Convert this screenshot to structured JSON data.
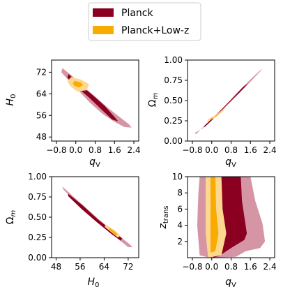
{
  "legend": {
    "items": [
      {
        "label": "Planck",
        "color": "#8b0020"
      },
      {
        "label": "Planck+Low-z",
        "color": "#f9ac00"
      }
    ],
    "placement": "top-center"
  },
  "chart_data": [
    {
      "type": "contour",
      "panel": "top-left",
      "xlabel": "q_V",
      "ylabel": "H_0",
      "xlim": [
        -1.0,
        2.6
      ],
      "ylim": [
        46.5,
        76.5
      ],
      "xticks": [
        "−0.8",
        "0.0",
        "0.8",
        "1.6",
        "2.4"
      ],
      "xtick_values": [
        -0.8,
        0.0,
        0.8,
        1.6,
        2.4
      ],
      "yticks": [
        "48",
        "56",
        "64",
        "72"
      ],
      "ytick_values": [
        48,
        56,
        64,
        72
      ],
      "series": [
        {
          "name": "Planck",
          "color": "#8b0020",
          "contour_95": [
            [
              -0.55,
              73.5
            ],
            [
              -0.2,
              71
            ],
            [
              0.3,
              66.8
            ],
            [
              0.8,
              63
            ],
            [
              1.3,
              59
            ],
            [
              1.8,
              55.5
            ],
            [
              2.2,
              52.7
            ],
            [
              2.3,
              51.5
            ],
            [
              2.0,
              51.7
            ],
            [
              1.6,
              53.6
            ],
            [
              1.1,
              56.6
            ],
            [
              0.55,
              61
            ],
            [
              0.05,
              65.8
            ],
            [
              -0.3,
              69
            ],
            [
              -0.6,
              72
            ]
          ],
          "contour_68": [
            [
              -0.3,
              71.3
            ],
            [
              0.2,
              67.2
            ],
            [
              0.7,
              63.5
            ],
            [
              1.2,
              59.5
            ],
            [
              1.62,
              55.2
            ],
            [
              1.75,
              53.8
            ],
            [
              1.5,
              54.5
            ],
            [
              1.05,
              58.3
            ],
            [
              0.55,
              62.6
            ],
            [
              0.05,
              66.5
            ],
            [
              -0.35,
              70
            ]
          ]
        },
        {
          "name": "Planck+Low-z",
          "color": "#f9ac00",
          "contour_95": [
            [
              -0.2,
              70.2
            ],
            [
              0.2,
              69.3
            ],
            [
              0.55,
              67.6
            ],
            [
              0.45,
              65.3
            ],
            [
              0.05,
              64.9
            ],
            [
              -0.2,
              66.6
            ],
            [
              -0.35,
              68.5
            ]
          ],
          "contour_68": [
            [
              -0.05,
              68.8
            ],
            [
              0.2,
              68.2
            ],
            [
              0.3,
              67.3
            ],
            [
              0.15,
              66.4
            ],
            [
              -0.05,
              66.9
            ],
            [
              -0.12,
              67.9
            ]
          ]
        }
      ]
    },
    {
      "type": "contour",
      "panel": "top-right",
      "xlabel": "q_V",
      "ylabel": "Ω_m",
      "xlim": [
        -1.0,
        2.6
      ],
      "ylim": [
        0.0,
        1.0
      ],
      "xticks": [
        "−0.8",
        "0.0",
        "0.8",
        "1.6",
        "2.4"
      ],
      "xtick_values": [
        -0.8,
        0.0,
        0.8,
        1.6,
        2.4
      ],
      "yticks": [
        "0.00",
        "0.25",
        "0.50",
        "0.75",
        "1.00"
      ],
      "ytick_values": [
        0.0,
        0.25,
        0.5,
        0.75,
        1.0
      ],
      "series": [
        {
          "name": "Planck",
          "color": "#8b0020",
          "contour_95": [
            [
              -0.65,
              0.085
            ],
            [
              -0.2,
              0.22
            ],
            [
              0.4,
              0.39
            ],
            [
              1.0,
              0.58
            ],
            [
              1.6,
              0.76
            ],
            [
              2.1,
              0.9
            ],
            [
              2.0,
              0.86
            ],
            [
              1.4,
              0.67
            ],
            [
              0.8,
              0.49
            ],
            [
              0.2,
              0.31
            ],
            [
              -0.35,
              0.16
            ],
            [
              -0.7,
              0.1
            ]
          ],
          "contour_68": [
            [
              -0.3,
              0.19
            ],
            [
              0.2,
              0.33
            ],
            [
              0.8,
              0.51
            ],
            [
              1.3,
              0.67
            ],
            [
              1.5,
              0.71
            ],
            [
              1.15,
              0.6
            ],
            [
              0.6,
              0.44
            ],
            [
              0.05,
              0.27
            ],
            [
              -0.3,
              0.17
            ]
          ]
        },
        {
          "name": "Planck+Low-z",
          "color": "#f9ac00",
          "contour_95": [
            [
              -0.15,
              0.27
            ],
            [
              0.2,
              0.33
            ],
            [
              0.55,
              0.41
            ],
            [
              0.48,
              0.37
            ],
            [
              0.15,
              0.29
            ],
            [
              -0.2,
              0.24
            ]
          ],
          "contour_68": [
            [
              -0.05,
              0.28
            ],
            [
              0.2,
              0.31
            ],
            [
              0.35,
              0.35
            ],
            [
              0.18,
              0.32
            ],
            [
              -0.02,
              0.27
            ]
          ]
        }
      ]
    },
    {
      "type": "contour",
      "panel": "bottom-left",
      "xlabel": "H_0",
      "ylabel": "Ω_m",
      "xlim": [
        46.5,
        75.5
      ],
      "ylim": [
        0.0,
        1.0
      ],
      "xticks": [
        "48",
        "56",
        "64",
        "72"
      ],
      "xtick_values": [
        48,
        56,
        64,
        72
      ],
      "yticks": [
        "0.00",
        "0.25",
        "0.50",
        "0.75",
        "1.00"
      ],
      "ytick_values": [
        0.0,
        0.25,
        0.5,
        0.75,
        1.0
      ],
      "series": [
        {
          "name": "Planck",
          "color": "#8b0020",
          "contour_95": [
            [
              50.0,
              0.88
            ],
            [
              56.0,
              0.68
            ],
            [
              62.0,
              0.48
            ],
            [
              68.0,
              0.3
            ],
            [
              72.0,
              0.18
            ],
            [
              73.5,
              0.13
            ],
            [
              72.0,
              0.13
            ],
            [
              68.0,
              0.25
            ],
            [
              62.0,
              0.43
            ],
            [
              56.0,
              0.63
            ],
            [
              50.5,
              0.84
            ]
          ],
          "contour_68": [
            [
              52.0,
              0.79
            ],
            [
              57.0,
              0.64
            ],
            [
              62.0,
              0.47
            ],
            [
              67.0,
              0.32
            ],
            [
              70.0,
              0.24
            ],
            [
              69.5,
              0.21
            ],
            [
              66.5,
              0.29
            ],
            [
              61.5,
              0.44
            ],
            [
              56.5,
              0.6
            ],
            [
              52.0,
              0.76
            ]
          ]
        },
        {
          "name": "Planck+Low-z",
          "color": "#f9ac00",
          "contour_95": [
            [
              64.5,
              0.41
            ],
            [
              67.5,
              0.34
            ],
            [
              69.5,
              0.27
            ],
            [
              68.5,
              0.25
            ],
            [
              66.5,
              0.31
            ],
            [
              64.2,
              0.38
            ]
          ],
          "contour_68": [
            [
              65.8,
              0.37
            ],
            [
              67.5,
              0.32
            ],
            [
              68.5,
              0.29
            ],
            [
              67.8,
              0.28
            ],
            [
              66.5,
              0.32
            ],
            [
              65.6,
              0.35
            ]
          ]
        }
      ]
    },
    {
      "type": "contour",
      "panel": "bottom-right",
      "xlabel": "q_V",
      "ylabel": "z_trans",
      "xlim": [
        -1.0,
        2.6
      ],
      "ylim": [
        0.0,
        10.0
      ],
      "xticks": [
        "−0.8",
        "0.0",
        "0.8",
        "1.6",
        "2.4"
      ],
      "xtick_values": [
        -0.8,
        0.0,
        0.8,
        1.6,
        2.4
      ],
      "yticks": [
        "2",
        "4",
        "6",
        "8",
        "10"
      ],
      "ytick_values": [
        2,
        4,
        6,
        8,
        10
      ],
      "series": [
        {
          "name": "Planck",
          "color": "#8b0020",
          "contour_95": [
            [
              -0.5,
              10.0
            ],
            [
              1.6,
              10.0
            ],
            [
              1.8,
              7.0
            ],
            [
              2.1,
              4.2
            ],
            [
              2.2,
              2.0
            ],
            [
              2.0,
              1.2
            ],
            [
              1.4,
              0.8
            ],
            [
              1.0,
              0.1
            ],
            [
              -0.1,
              0.0
            ],
            [
              -0.5,
              0.3
            ],
            [
              -0.6,
              4.0
            ],
            [
              -0.55,
              8.0
            ]
          ],
          "contour_68": [
            [
              0.05,
              10.0
            ],
            [
              1.2,
              10.0
            ],
            [
              1.25,
              7.0
            ],
            [
              1.45,
              3.0
            ],
            [
              1.35,
              2.2
            ],
            [
              0.8,
              1.2
            ],
            [
              0.3,
              0.2
            ],
            [
              0.05,
              0.0
            ]
          ]
        },
        {
          "name": "Planck+Low-z",
          "color": "#f9ac00",
          "contour_95": [
            [
              -0.25,
              10.0
            ],
            [
              0.4,
              10.0
            ],
            [
              0.45,
              6.0
            ],
            [
              0.6,
              3.0
            ],
            [
              0.4,
              0.3
            ],
            [
              -0.15,
              0.0
            ],
            [
              -0.25,
              3.0
            ]
          ],
          "contour_68": [
            [
              -0.05,
              10.0
            ],
            [
              0.15,
              10.0
            ],
            [
              0.18,
              6.0
            ],
            [
              0.28,
              3.0
            ],
            [
              0.15,
              0.8
            ],
            [
              -0.05,
              0.6
            ]
          ]
        }
      ]
    }
  ]
}
